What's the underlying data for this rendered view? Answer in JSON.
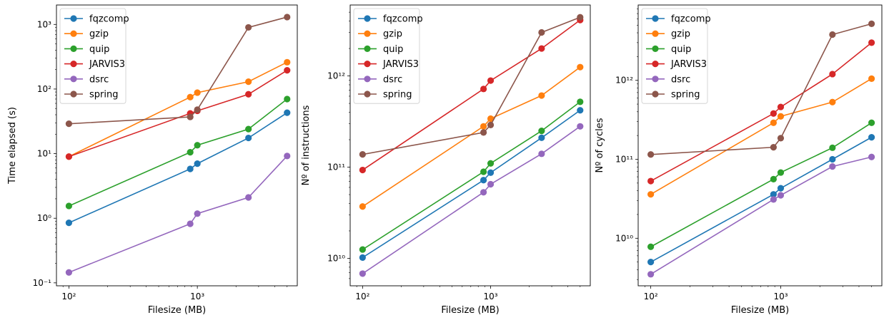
{
  "colors": {
    "fqzcomp": "#1f77b4",
    "gzip": "#ff7f0e",
    "quip": "#2ca02c",
    "JARVIS3": "#d62728",
    "dsrc": "#9467bd",
    "spring": "#8c564b"
  },
  "chart_data": [
    {
      "type": "line",
      "xscale": "log",
      "yscale": "log",
      "xlabel": "Filesize (MB)",
      "ylabel": "Time elapsed (s)",
      "xlim": [
        80,
        6000
      ],
      "ylim": [
        0.09,
        2000
      ],
      "xticks": [
        {
          "value": 100,
          "label": "10²"
        },
        {
          "value": 1000,
          "label": "10³"
        }
      ],
      "yticks": [
        {
          "value": 0.1,
          "label": "10⁻¹"
        },
        {
          "value": 1,
          "label": "10⁰"
        },
        {
          "value": 10,
          "label": "10¹"
        },
        {
          "value": 100,
          "label": "10²"
        },
        {
          "value": 1000,
          "label": "10³"
        }
      ],
      "legend": "top-left",
      "marker": "circle",
      "x": [
        100,
        880,
        1000,
        2500,
        5000
      ],
      "series": [
        {
          "name": "fqzcomp",
          "values": [
            0.85,
            5.8,
            7,
            17.5,
            43
          ]
        },
        {
          "name": "gzip",
          "values": [
            9,
            75,
            88,
            130,
            260
          ]
        },
        {
          "name": "quip",
          "values": [
            1.55,
            10.5,
            13.5,
            24,
            70
          ]
        },
        {
          "name": "JARVIS3",
          "values": [
            9,
            42,
            46,
            83,
            195
          ]
        },
        {
          "name": "dsrc",
          "values": [
            0.145,
            0.82,
            1.18,
            2.1,
            9.2
          ]
        },
        {
          "name": "spring",
          "values": [
            29,
            37,
            48,
            900,
            1300
          ]
        }
      ]
    },
    {
      "type": "line",
      "xscale": "log",
      "yscale": "log",
      "xlabel": "Filesize (MB)",
      "ylabel": "Nº of instructions",
      "xlim": [
        80,
        6000
      ],
      "ylim": [
        5000000000.0,
        6000000000000.0
      ],
      "xticks": [
        {
          "value": 100,
          "label": "10²"
        },
        {
          "value": 1000,
          "label": "10³"
        }
      ],
      "yticks": [
        {
          "value": 10000000000.0,
          "label": "10¹⁰"
        },
        {
          "value": 100000000000.0,
          "label": "10¹¹"
        },
        {
          "value": 1000000000000.0,
          "label": "10¹²"
        }
      ],
      "legend": "top-left",
      "marker": "circle",
      "x": [
        100,
        880,
        1000,
        2500,
        5000
      ],
      "series": [
        {
          "name": "fqzcomp",
          "values": [
            10200000000.0,
            72000000000.0,
            87000000000.0,
            210000000000.0,
            420000000000.0
          ]
        },
        {
          "name": "gzip",
          "values": [
            37000000000.0,
            280000000000.0,
            340000000000.0,
            610000000000.0,
            1250000000000.0
          ]
        },
        {
          "name": "quip",
          "values": [
            12500000000.0,
            89000000000.0,
            110000000000.0,
            250000000000.0,
            520000000000.0
          ]
        },
        {
          "name": "JARVIS3",
          "values": [
            93000000000.0,
            720000000000.0,
            890000000000.0,
            2000000000000.0,
            4100000000000.0
          ]
        },
        {
          "name": "dsrc",
          "values": [
            6800000000.0,
            53000000000.0,
            65000000000.0,
            140000000000.0,
            280000000000.0
          ]
        },
        {
          "name": "spring",
          "values": [
            138000000000.0,
            240000000000.0,
            290000000000.0,
            3000000000000.0,
            4400000000000.0
          ]
        }
      ]
    },
    {
      "type": "line",
      "xscale": "log",
      "yscale": "log",
      "xlabel": "Filesize (MB)",
      "ylabel": "Nº of cycles",
      "xlim": [
        80,
        6000
      ],
      "ylim": [
        2500000000.0,
        9000000000000.0
      ],
      "xticks": [
        {
          "value": 100,
          "label": "10²"
        },
        {
          "value": 1000,
          "label": "10³"
        }
      ],
      "yticks": [
        {
          "value": 10000000000.0,
          "label": "10¹⁰"
        },
        {
          "value": 100000000000.0,
          "label": "10¹¹"
        },
        {
          "value": 1000000000000.0,
          "label": "10¹²"
        }
      ],
      "legend": "top-left",
      "marker": "circle",
      "x": [
        100,
        880,
        1000,
        2500,
        5000
      ],
      "series": [
        {
          "name": "fqzcomp",
          "values": [
            5000000000.0,
            36000000000.0,
            43000000000.0,
            100000000000.0,
            190000000000.0
          ]
        },
        {
          "name": "gzip",
          "values": [
            36000000000.0,
            290000000000.0,
            350000000000.0,
            530000000000.0,
            1050000000000.0
          ]
        },
        {
          "name": "quip",
          "values": [
            7800000000.0,
            56000000000.0,
            68000000000.0,
            140000000000.0,
            290000000000.0
          ]
        },
        {
          "name": "JARVIS3",
          "values": [
            53000000000.0,
            380000000000.0,
            460000000000.0,
            1200000000000.0,
            3000000000000.0
          ]
        },
        {
          "name": "dsrc",
          "values": [
            3500000000.0,
            31000000000.0,
            35000000000.0,
            81000000000.0,
            107000000000.0
          ]
        },
        {
          "name": "spring",
          "values": [
            115000000000.0,
            142000000000.0,
            185000000000.0,
            3800000000000.0,
            5200000000000.0
          ]
        }
      ]
    }
  ]
}
